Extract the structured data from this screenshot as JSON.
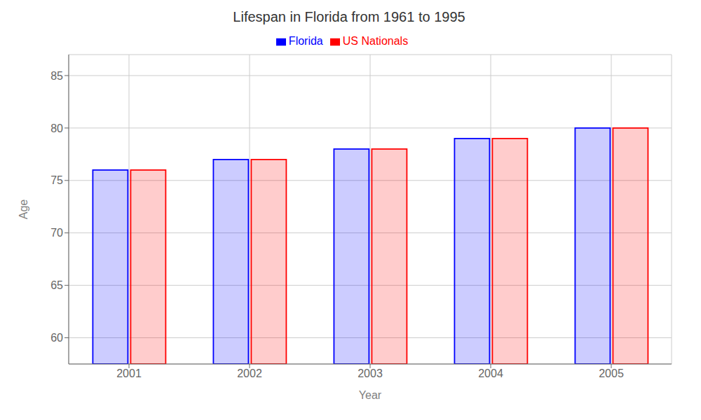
{
  "chart_data": {
    "type": "bar",
    "title": "Lifespan in Florida from 1961 to 1995",
    "xlabel": "Year",
    "ylabel": "Age",
    "categories": [
      "2001",
      "2002",
      "2003",
      "2004",
      "2005"
    ],
    "series": [
      {
        "name": "Florida",
        "color": "#0000ff",
        "values": [
          76,
          77,
          78,
          79,
          80
        ]
      },
      {
        "name": "US Nationals",
        "color": "#ff0000",
        "values": [
          76,
          77,
          78,
          79,
          80
        ]
      }
    ],
    "ylim": [
      57.5,
      87
    ],
    "yticks": [
      60,
      65,
      70,
      75,
      80,
      85
    ],
    "grid": true,
    "legend": "top"
  }
}
